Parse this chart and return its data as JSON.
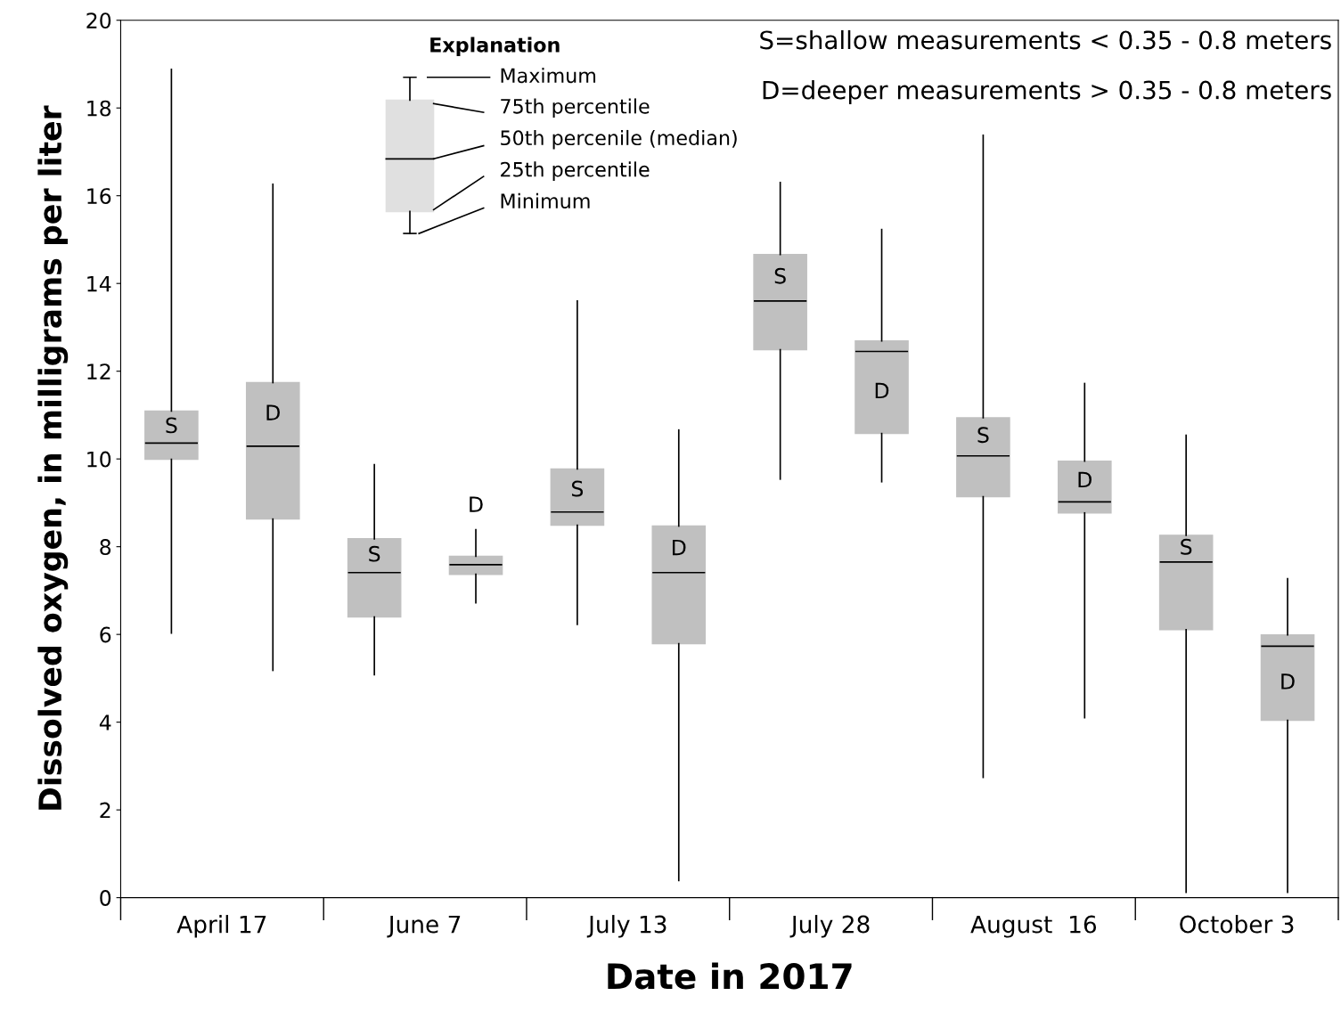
{
  "chart_data": {
    "type": "box",
    "xlabel": "Date in 2017",
    "ylabel": "Dissolved oxygen, in milligrams per liter",
    "categories": [
      "April 17",
      "June 7",
      "July 13",
      "July 28",
      "August  16",
      "October 3"
    ],
    "ylim": [
      0,
      20
    ],
    "yticks": [
      0,
      2,
      4,
      6,
      8,
      10,
      12,
      14,
      16,
      18,
      20
    ],
    "grid": false,
    "legend": false,
    "series": [
      {
        "name": "S",
        "color": "#c0c0c0",
        "boxes": [
          {
            "low": 6.03,
            "q1": 9.99,
            "median": 10.36,
            "q3": 11.09,
            "high": 18.88
          },
          {
            "low": 5.08,
            "q1": 6.4,
            "median": 7.41,
            "q3": 8.18,
            "high": 9.87
          },
          {
            "low": 6.23,
            "q1": 8.49,
            "median": 8.79,
            "q3": 9.77,
            "high": 13.6
          },
          {
            "low": 9.54,
            "q1": 12.49,
            "median": 13.6,
            "q3": 14.66,
            "high": 16.3
          },
          {
            "low": 2.74,
            "q1": 9.14,
            "median": 10.07,
            "q3": 10.94,
            "high": 17.38
          },
          {
            "low": 0.12,
            "q1": 6.11,
            "median": 7.65,
            "q3": 8.26,
            "high": 10.54
          }
        ]
      },
      {
        "name": "D",
        "color": "#c0c0c0",
        "boxes": [
          {
            "low": 5.18,
            "q1": 8.63,
            "median": 10.29,
            "q3": 11.74,
            "high": 16.26
          },
          {
            "low": 6.72,
            "q1": 7.37,
            "median": 7.59,
            "q3": 7.78,
            "high": 8.39
          },
          {
            "low": 0.39,
            "q1": 5.79,
            "median": 7.41,
            "q3": 8.47,
            "high": 10.66
          },
          {
            "low": 9.48,
            "q1": 10.58,
            "median": 12.45,
            "q3": 12.69,
            "high": 15.23
          },
          {
            "low": 4.1,
            "q1": 8.77,
            "median": 9.02,
            "q3": 9.95,
            "high": 11.72
          },
          {
            "low": 0.12,
            "q1": 4.04,
            "median": 5.73,
            "q3": 5.99,
            "high": 7.27
          }
        ]
      }
    ],
    "annotations": [
      "Explanation",
      "Maximum",
      "75th percentile",
      "50th percenile (median)",
      "25th percentile",
      "Minimum",
      "S=shallow measurements < 0.35 - 0.8 meters",
      "D=deeper measurements > 0.35 - 0.8 meters"
    ]
  }
}
